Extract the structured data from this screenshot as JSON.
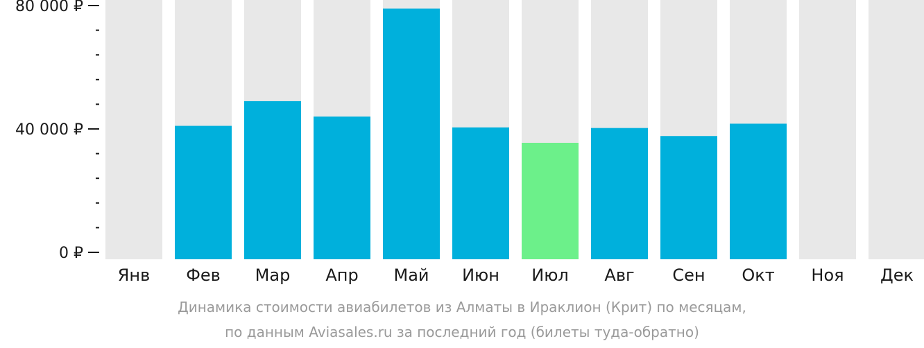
{
  "chart_data": {
    "type": "bar",
    "categories": [
      "Янв",
      "Фев",
      "Мар",
      "Апр",
      "Май",
      "Июн",
      "Июл",
      "Авг",
      "Сен",
      "Окт",
      "Ноя",
      "Дек"
    ],
    "values": [
      null,
      41000,
      49000,
      44000,
      79000,
      40500,
      35500,
      40300,
      37700,
      41700,
      null,
      null
    ],
    "ylim": [
      0,
      80000
    ],
    "yticks": [
      {
        "value": 0,
        "label": "0 ₽"
      },
      {
        "value": 40000,
        "label": "40 000 ₽"
      },
      {
        "value": 80000,
        "label": "80 000 ₽"
      }
    ],
    "highlight_index": 6,
    "colors": {
      "bar": "#00b0dc",
      "highlight": "#6cf08a",
      "background_column": "#e8e8e8",
      "axis": "#1a1a1a"
    }
  },
  "caption": {
    "line1": "Динамика стоимости авиабилетов из Алматы в Ираклион (Крит) по месяцам,",
    "line2": "по данным Aviasales.ru за последний год (билеты туда-обратно)"
  }
}
